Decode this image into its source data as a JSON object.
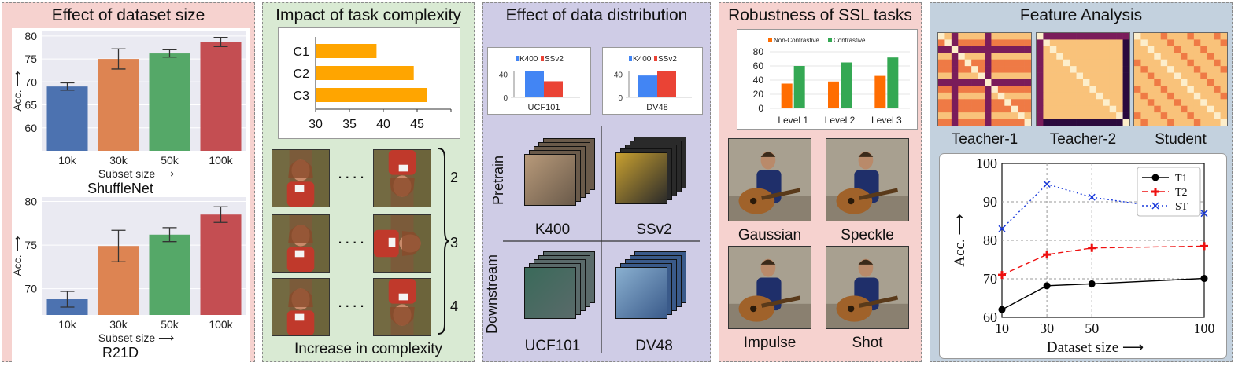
{
  "panels": {
    "p1": {
      "title": "Effect of dataset size"
    },
    "p2": {
      "title": "Impact of task complexity",
      "caption": "Increase in complexity",
      "row_labels": [
        "2",
        "3",
        "4"
      ],
      "dots": "····"
    },
    "p3": {
      "title": "Effect of data distribution",
      "pretrain": "Pretrain",
      "downstream": "Downstream",
      "labels": [
        "K400",
        "SSv2",
        "UCF101",
        "DV48"
      ]
    },
    "p4": {
      "title": "Robustness of SSL tasks",
      "noise_labels": [
        "Gaussian",
        "Speckle",
        "Impulse",
        "Shot"
      ]
    },
    "p5": {
      "title": "Feature Analysis",
      "heatmap_labels": [
        "Teacher-1",
        "Teacher-2",
        "Student"
      ]
    }
  },
  "colors": {
    "p1_bg": "#f6d2cf",
    "p2_bg": "#d9ead3",
    "p3_bg": "#cfcce6",
    "p4_bg": "#f6d2cf",
    "p5_bg": "#c3d1de",
    "bar_blue": "#4c72b0",
    "bar_orange": "#dd8452",
    "bar_green": "#55a868",
    "bar_red": "#c44e52",
    "orange": "#ffa500",
    "k400_blue": "#4285f4",
    "ssv2_red": "#ea4335",
    "ssl_orange": "#ff6d01",
    "ssl_green": "#34a853"
  },
  "chart_data": [
    {
      "id": "shufflenet",
      "type": "bar",
      "title": "ShuffleNet",
      "categories": [
        "10k",
        "30k",
        "50k",
        "100k"
      ],
      "values": [
        69.0,
        75.0,
        76.2,
        78.7
      ],
      "errors": [
        0.8,
        2.2,
        0.8,
        1.0
      ],
      "xlabel": "Subset size ⟶",
      "ylabel": "Acc. ⟶",
      "ylim": [
        55,
        81
      ],
      "yticks": [
        60,
        65,
        70,
        75,
        80
      ]
    },
    {
      "id": "r21d",
      "type": "bar",
      "title": "R21D",
      "categories": [
        "10k",
        "30k",
        "50k",
        "100k"
      ],
      "values": [
        68.8,
        74.9,
        76.2,
        78.5
      ],
      "errors": [
        0.9,
        1.8,
        0.8,
        0.9
      ],
      "xlabel": "Subset size ⟶",
      "ylabel": "Acc. ⟶",
      "ylim": [
        67,
        80.5
      ],
      "yticks": [
        70,
        75,
        80
      ]
    },
    {
      "id": "complexity",
      "type": "bar",
      "orientation": "horizontal",
      "categories": [
        "C1",
        "C2",
        "C3"
      ],
      "values": [
        39,
        44.5,
        46.5
      ],
      "xlim": [
        30,
        50
      ],
      "xticks": [
        30,
        35,
        40,
        45
      ]
    },
    {
      "id": "ucf101",
      "type": "bar",
      "title": "UCF101",
      "series": [
        {
          "name": "K400",
          "values": [
            45
          ]
        },
        {
          "name": "SSv2",
          "values": [
            28
          ]
        }
      ],
      "ylim": [
        0,
        60
      ],
      "yticks": [
        0,
        40
      ]
    },
    {
      "id": "dv48",
      "type": "bar",
      "title": "DV48",
      "series": [
        {
          "name": "K400",
          "values": [
            38
          ]
        },
        {
          "name": "SSv2",
          "values": [
            45
          ]
        }
      ],
      "ylim": [
        0,
        60
      ],
      "yticks": [
        0,
        40
      ]
    },
    {
      "id": "ssl",
      "type": "bar",
      "categories": [
        "Level 1",
        "Level 2",
        "Level 3"
      ],
      "series": [
        {
          "name": "Non-Contrastive",
          "values": [
            35,
            38,
            46
          ]
        },
        {
          "name": "Contrastive",
          "values": [
            60,
            65,
            72
          ]
        }
      ],
      "ylim": [
        0,
        80
      ],
      "yticks": [
        0,
        20,
        40,
        60,
        80
      ]
    },
    {
      "id": "feature",
      "type": "line",
      "x": [
        10,
        30,
        50,
        100
      ],
      "series": [
        {
          "name": "T1",
          "values": [
            62,
            68.2,
            68.7,
            70.1
          ]
        },
        {
          "name": "T2",
          "values": [
            71,
            76.3,
            78,
            78.5
          ]
        },
        {
          "name": "ST",
          "values": [
            83,
            94.6,
            91.2,
            87
          ]
        }
      ],
      "xlabel": "Dataset size ⟶",
      "ylabel": "Acc. ⟶",
      "xlim": [
        10,
        100
      ],
      "ylim": [
        60,
        100
      ],
      "xticks": [
        10,
        30,
        50,
        100
      ],
      "yticks": [
        60,
        70,
        80,
        90,
        100
      ]
    }
  ]
}
